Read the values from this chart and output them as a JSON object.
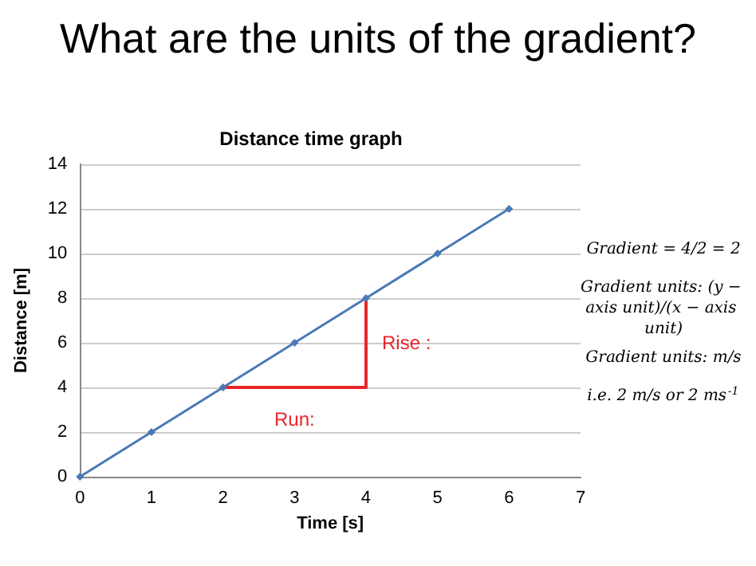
{
  "chart_data": {
    "type": "line",
    "title": "What are the units of the gradient?",
    "subtitle": "Distance time graph",
    "xlabel": "Time [s]",
    "ylabel": "Distance [m]",
    "series": [
      {
        "color": "#4a7ab5",
        "x": [
          0,
          1,
          2,
          3,
          4,
          5,
          6
        ],
        "values": [
          0,
          2,
          4,
          6,
          8,
          10,
          12
        ]
      },
      {
        "color": "#e8262a",
        "x": [
          2,
          4,
          4
        ],
        "values": [
          4,
          4,
          8
        ],
        "marker": "none"
      }
    ],
    "xlim": [
      0,
      7
    ],
    "xticks": [
      0,
      1,
      2,
      3,
      4,
      5,
      6,
      7
    ],
    "ylim": [
      0,
      14
    ],
    "yticks": [
      0,
      2,
      4,
      6,
      8,
      10,
      12,
      14
    ],
    "grid": "y",
    "marker": "diamond",
    "line_style": "solid",
    "annotations": [
      "Rise :",
      "Run:",
      "Gradient = 4/2 = 2",
      "Gradient units: (y − axis unit)/(x − axis unit)",
      "Gradient units: m/s",
      "i.e. 2 m/s or 2 ms$^{-1}$"
    ]
  }
}
